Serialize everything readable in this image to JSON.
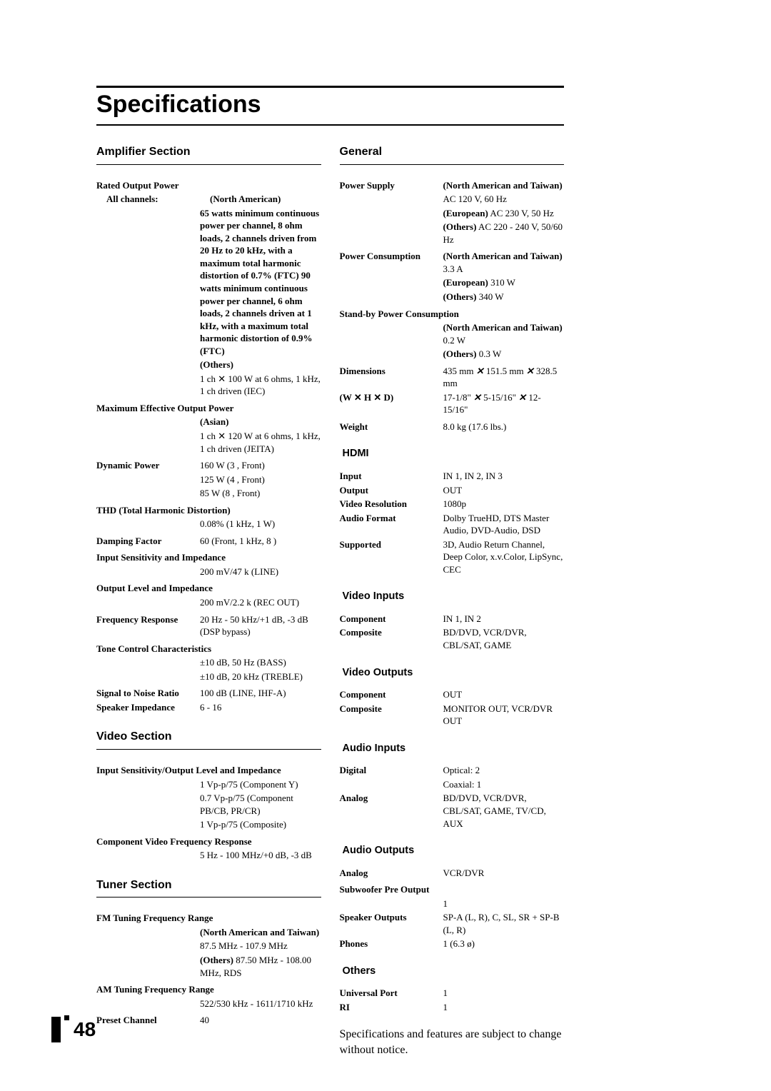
{
  "page": {
    "title": "Specifications",
    "number": "48",
    "footnote": "Specifications and features are subject to change without notice."
  },
  "left": {
    "amplifier": {
      "heading": "Amplifier Section",
      "rated_output": {
        "label": "Rated Output Power",
        "sub_label": "All channels:",
        "na_label": "(North American)",
        "na_text": "65 watts minimum continuous power per channel, 8 ohm loads, 2 channels driven from 20 Hz to 20 kHz, with a maximum total harmonic distortion of 0.7% (FTC) 90 watts minimum continuous power per channel, 6 ohm loads, 2 channels driven at 1 kHz, with a maximum total harmonic distortion of 0.9% (FTC)",
        "others_label": "(Others)",
        "others_text": "1 ch ✕ 100 W at 6 ohms, 1 kHz, 1 ch driven (IEC)"
      },
      "max_eff": {
        "label": "Maximum Effective Output Power",
        "asian_label": "(Asian)",
        "asian_text": "1 ch ✕ 120 W at 6 ohms, 1 kHz, 1 ch driven (JEITA)"
      },
      "dynamic": {
        "label": "Dynamic Power",
        "l1": "160 W (3  , Front)",
        "l2": "125 W (4  , Front)",
        "l3": "85 W (8  , Front)"
      },
      "thd": {
        "label": "THD (Total Harmonic Distortion)",
        "value": "0.08% (1 kHz, 1 W)"
      },
      "damping": {
        "label": "Damping Factor",
        "value": "60 (Front, 1 kHz, 8   )"
      },
      "input_sens": {
        "label": "Input Sensitivity and Impedance",
        "value": "200 mV/47 k   (LINE)"
      },
      "output_level": {
        "label": "Output Level and Impedance",
        "value": "200 mV/2.2 k   (REC OUT)"
      },
      "freq_resp": {
        "label": "Frequency Response",
        "value": "20 Hz - 50 kHz/+1 dB, -3 dB (DSP bypass)"
      },
      "tone": {
        "label": "Tone Control Characteristics",
        "l1": "±10 dB, 50 Hz (BASS)",
        "l2": "±10 dB, 20 kHz (TREBLE)"
      },
      "sn": {
        "label": "Signal to Noise Ratio",
        "value": "100 dB (LINE, IHF-A)"
      },
      "speaker_imp": {
        "label": "Speaker Impedance",
        "value": "6   - 16"
      }
    },
    "video": {
      "heading": "Video Section",
      "input_sens": {
        "label": "Input Sensitivity/Output Level and Impedance",
        "l1": "1 Vp-p/75    (Component Y)",
        "l2": "0.7 Vp-p/75    (Component PB/CB, PR/CR)",
        "l3": "1 Vp-p/75    (Composite)"
      },
      "comp_freq": {
        "label": "Component Video Frequency Response",
        "value": "5 Hz - 100 MHz/+0 dB, -3 dB"
      }
    },
    "tuner": {
      "heading": "Tuner Section",
      "fm": {
        "label": "FM Tuning Frequency Range",
        "na_label": "(North American and Taiwan)",
        "na_value": "87.5 MHz - 107.9 MHz",
        "others_label": "(Others)",
        "others_value": " 87.50 MHz - 108.00 MHz, RDS"
      },
      "am": {
        "label": "AM Tuning Frequency Range",
        "value": "522/530 kHz - 1611/1710 kHz"
      },
      "preset": {
        "label": "Preset Channel",
        "value": "40"
      }
    }
  },
  "right": {
    "general": {
      "heading": "General",
      "power_supply": {
        "label": "Power Supply",
        "na_label": "(North American and Taiwan)",
        "na_value": "AC 120 V, 60 Hz",
        "eu_label": "(European)",
        "eu_value": " AC 230 V, 50 Hz",
        "ot_label": "(Others)",
        "ot_value": " AC 220 - 240 V, 50/60 Hz"
      },
      "power_cons": {
        "label": "Power Consumption",
        "na_label": "(North American and Taiwan)",
        "na_value": " 3.3 A",
        "eu_label": "(European)",
        "eu_value": " 310 W",
        "ot_label": "(Others)",
        "ot_value": " 340 W"
      },
      "standby": {
        "label": "Stand-by Power Consumption",
        "na_label": "(North American and Taiwan)",
        "na_value": " 0.2 W",
        "ot_label": "(Others)",
        "ot_value": " 0.3 W"
      },
      "dimensions": {
        "label": "Dimensions",
        "sub_label": "(W ✕ H ✕ D)",
        "l1a": "435 mm ",
        "l1b": " 151.5 mm ",
        "l1c": " 328.5 mm",
        "l2a": "17-1/8\" ",
        "l2b": " 5-15/16\" ",
        "l2c": " 12-15/16\""
      },
      "weight": {
        "label": "Weight",
        "value": "8.0 kg (17.6 lbs.)"
      }
    },
    "hdmi": {
      "heading": "HDMI",
      "input": {
        "label": "Input",
        "value": "IN 1, IN 2, IN 3"
      },
      "output": {
        "label": "Output",
        "value": "OUT"
      },
      "video_res": {
        "label": "Video Resolution",
        "value": "1080p"
      },
      "audio_fmt": {
        "label": "Audio Format",
        "value": "Dolby TrueHD, DTS Master Audio, DVD-Audio, DSD"
      },
      "supported": {
        "label": "Supported",
        "value": "3D, Audio Return Channel, Deep Color, x.v.Color, LipSync, CEC"
      }
    },
    "video_inputs": {
      "heading": "Video Inputs",
      "component": {
        "label": "Component",
        "value": "IN 1, IN 2"
      },
      "composite": {
        "label": "Composite",
        "value": "BD/DVD, VCR/DVR, CBL/SAT, GAME"
      }
    },
    "video_outputs": {
      "heading": "Video Outputs",
      "component": {
        "label": "Component",
        "value": "OUT"
      },
      "composite": {
        "label": "Composite",
        "value": "MONITOR OUT, VCR/DVR OUT"
      }
    },
    "audio_inputs": {
      "heading": "Audio Inputs",
      "digital": {
        "label": "Digital",
        "l1": "Optical: 2",
        "l2": "Coaxial: 1"
      },
      "analog": {
        "label": "Analog",
        "value": "BD/DVD, VCR/DVR, CBL/SAT, GAME, TV/CD, AUX"
      }
    },
    "audio_outputs": {
      "heading": "Audio Outputs",
      "analog": {
        "label": "Analog",
        "value": "VCR/DVR"
      },
      "sub_pre": {
        "label": "Subwoofer Pre Output",
        "value": "1"
      },
      "speaker_out": {
        "label": "Speaker Outputs",
        "value": "SP-A (L, R), C, SL, SR + SP-B (L, R)"
      },
      "phones": {
        "label": "Phones",
        "value": "1 (6.3 ø)"
      }
    },
    "others": {
      "heading": "Others",
      "uport": {
        "label": "Universal Port",
        "value": "1"
      },
      "ri": {
        "label": "RI",
        "value": "1"
      }
    }
  }
}
